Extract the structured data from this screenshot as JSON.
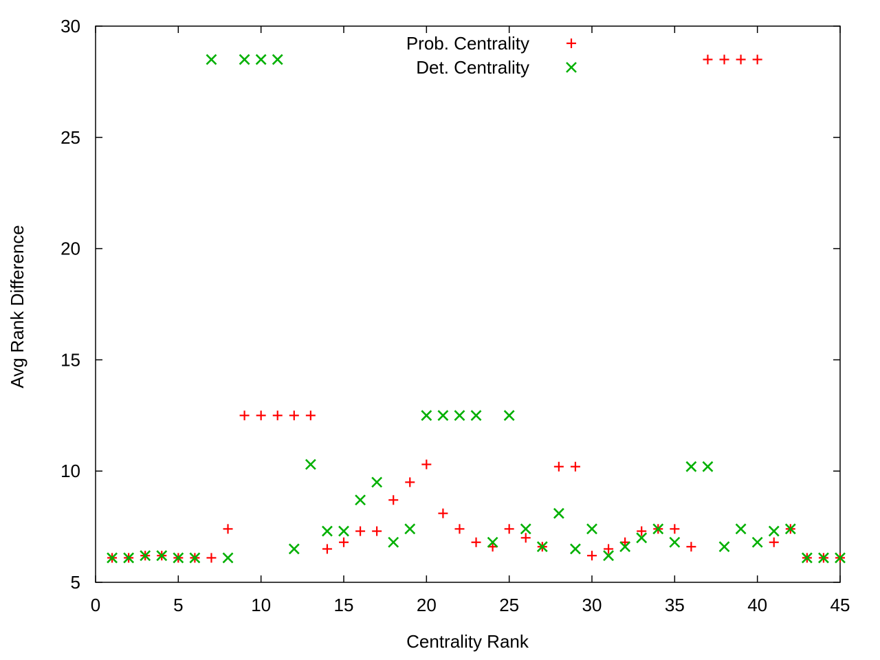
{
  "chart_data": {
    "type": "scatter",
    "xlabel": "Centrality Rank",
    "ylabel": "Avg Rank Difference",
    "xlim": [
      0,
      45
    ],
    "ylim": [
      5,
      30
    ],
    "xticks": [
      "0",
      "5",
      "10",
      "15",
      "20",
      "25",
      "30",
      "35",
      "40",
      "45"
    ],
    "yticks": [
      "5",
      "10",
      "15",
      "20",
      "25",
      "30"
    ],
    "grid": false,
    "legend_position": "top-center",
    "series": [
      {
        "name": "Prob. Centrality",
        "marker": "plus",
        "color": "#ff0000",
        "x": [
          1,
          2,
          3,
          4,
          5,
          6,
          7,
          8,
          9,
          10,
          11,
          12,
          13,
          14,
          15,
          16,
          17,
          18,
          19,
          20,
          21,
          22,
          23,
          24,
          25,
          26,
          27,
          28,
          29,
          30,
          31,
          32,
          33,
          34,
          35,
          36,
          37,
          38,
          39,
          40,
          41,
          42,
          43,
          44,
          45
        ],
        "y": [
          6.1,
          6.1,
          6.2,
          6.2,
          6.1,
          6.1,
          6.1,
          7.4,
          12.5,
          12.5,
          12.5,
          12.5,
          12.5,
          6.5,
          6.8,
          7.3,
          7.3,
          8.7,
          9.5,
          10.3,
          8.1,
          7.4,
          6.8,
          6.6,
          7.4,
          7.0,
          6.6,
          10.2,
          10.2,
          6.2,
          6.5,
          6.8,
          7.3,
          7.4,
          7.4,
          6.6,
          28.5,
          28.5,
          28.5,
          28.5,
          6.8,
          7.4,
          6.1,
          6.1,
          6.1
        ]
      },
      {
        "name": "Det. Centrality",
        "marker": "cross",
        "color": "#00b000",
        "x": [
          1,
          2,
          3,
          4,
          5,
          6,
          7,
          8,
          9,
          10,
          11,
          12,
          13,
          14,
          15,
          16,
          17,
          18,
          19,
          20,
          21,
          22,
          23,
          24,
          25,
          26,
          27,
          28,
          29,
          30,
          31,
          32,
          33,
          34,
          35,
          36,
          37,
          38,
          39,
          40,
          41,
          42,
          43,
          44,
          45
        ],
        "y": [
          6.1,
          6.1,
          6.2,
          6.2,
          6.1,
          6.1,
          28.5,
          6.1,
          28.5,
          28.5,
          28.5,
          6.5,
          10.3,
          7.3,
          7.3,
          8.7,
          9.5,
          6.8,
          7.4,
          12.5,
          12.5,
          12.5,
          12.5,
          6.8,
          12.5,
          7.4,
          6.6,
          8.1,
          6.5,
          7.4,
          6.2,
          6.6,
          7.0,
          7.4,
          6.8,
          10.2,
          10.2,
          6.6,
          7.4,
          6.8,
          7.3,
          7.4,
          6.1,
          6.1,
          6.1
        ]
      }
    ]
  }
}
